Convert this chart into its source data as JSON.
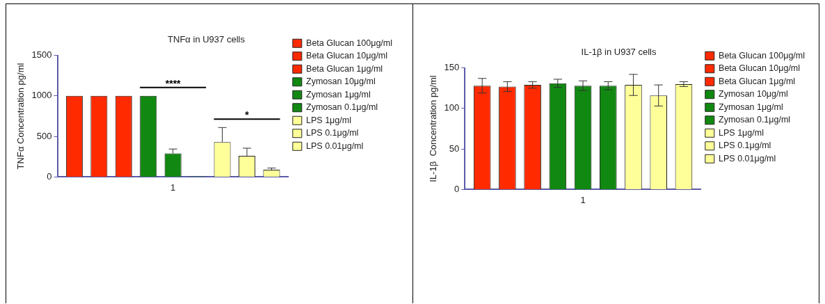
{
  "chart_data": [
    {
      "type": "bar",
      "title": "TNFα in U937 cells",
      "ylabel": "TNFα Concentration pg/ml",
      "categories": [
        "1"
      ],
      "ylim": [
        0,
        1500
      ],
      "yticks": [
        0,
        500,
        1000,
        1500
      ],
      "grid": false,
      "legend": "right",
      "series": [
        {
          "name": "Beta Glucan 100μg/ml",
          "color": "#ff2a00",
          "values": [
            1000
          ]
        },
        {
          "name": "Beta Glucan 10μg/ml",
          "color": "#ff2a00",
          "values": [
            1000
          ]
        },
        {
          "name": "Beta Glucan 1μg/ml",
          "color": "#ff2a00",
          "values": [
            1000
          ]
        },
        {
          "name": "Zymosan 10μg/ml",
          "color": "#118811",
          "values": [
            1000
          ]
        },
        {
          "name": "Zymosan 1μg/ml",
          "color": "#118811",
          "values": [
            290
          ],
          "errors": [
            [
              290,
              345
            ]
          ]
        },
        {
          "name": "Zymosan 0.1μg/ml",
          "color": "#118811",
          "values": [
            10
          ]
        },
        {
          "name": "LPS 1μg/ml",
          "color": "#ffff99",
          "values": [
            430
          ],
          "errors": [
            [
              430,
              610
            ]
          ]
        },
        {
          "name": "LPS 0.1μg/ml",
          "color": "#ffff99",
          "values": [
            260
          ],
          "errors": [
            [
              260,
              355
            ]
          ]
        },
        {
          "name": "LPS 0.01μg/ml",
          "color": "#ffff99",
          "values": [
            90
          ],
          "errors": [
            [
              90,
              110
            ]
          ]
        }
      ],
      "annotations": [
        "****",
        "*"
      ]
    },
    {
      "type": "bar",
      "title": "IL-1β in U937 cells",
      "ylabel": "IL-1β  Concentration pg/ml",
      "categories": [
        "1"
      ],
      "ylim": [
        0,
        150
      ],
      "yticks": [
        0,
        50,
        100,
        150
      ],
      "grid": false,
      "legend": "right",
      "series": [
        {
          "name": "Beta Glucan 100μg/ml",
          "color": "#ff2a00",
          "values": [
            128
          ],
          "errors": [
            9
          ]
        },
        {
          "name": "Beta Glucan 10μg/ml",
          "color": "#ff2a00",
          "values": [
            127
          ],
          "errors": [
            6
          ]
        },
        {
          "name": "Beta Glucan 1μg/ml",
          "color": "#ff2a00",
          "values": [
            129
          ],
          "errors": [
            4
          ]
        },
        {
          "name": "Zymosan 10μg/ml",
          "color": "#118811",
          "values": [
            131
          ],
          "errors": [
            5
          ]
        },
        {
          "name": "Zymosan 1μg/ml",
          "color": "#118811",
          "values": [
            128
          ],
          "errors": [
            6
          ]
        },
        {
          "name": "Zymosan 0.1μg/ml",
          "color": "#118811",
          "values": [
            128
          ],
          "errors": [
            5
          ]
        },
        {
          "name": "LPS 1μg/ml",
          "color": "#ffff99",
          "values": [
            129
          ],
          "errors": [
            13
          ]
        },
        {
          "name": "LPS 0.1μg/ml",
          "color": "#ffff99",
          "values": [
            116
          ],
          "errors": [
            13
          ]
        },
        {
          "name": "LPS 0.01μg/ml",
          "color": "#ffff99",
          "values": [
            130
          ],
          "errors": [
            3
          ]
        }
      ]
    }
  ]
}
